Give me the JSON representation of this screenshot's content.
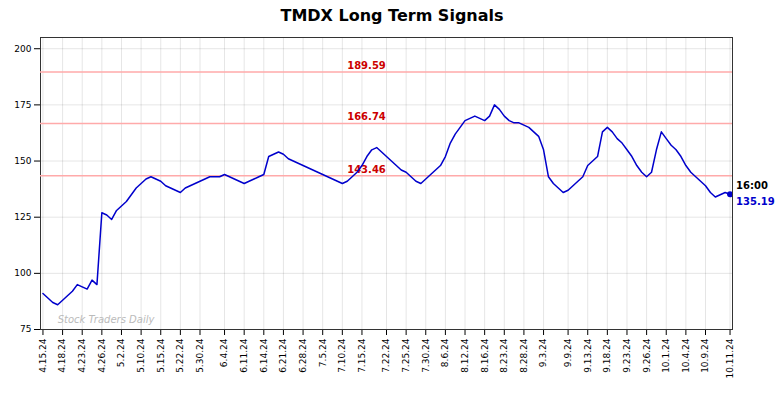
{
  "chart_data": {
    "type": "line",
    "title": "TMDX Long Term Signals",
    "categories": [
      "4.15.24",
      null,
      null,
      null,
      "4.18.24",
      null,
      null,
      null,
      "4.23.24",
      null,
      null,
      null,
      "4.26.24",
      null,
      null,
      null,
      "5.2.24",
      null,
      null,
      null,
      "5.10.24",
      null,
      null,
      null,
      "5.15.24",
      null,
      null,
      null,
      "5.22.24",
      null,
      null,
      null,
      "5.30.24",
      null,
      null,
      null,
      null,
      "6.4.24",
      null,
      null,
      null,
      "6.11.24",
      null,
      null,
      null,
      "6.14.24",
      null,
      null,
      null,
      "6.21.24",
      null,
      null,
      null,
      "6.28.24",
      null,
      null,
      null,
      "7.5.24",
      null,
      null,
      null,
      "7.10.24",
      null,
      null,
      null,
      "7.15.24",
      null,
      null,
      null,
      null,
      "7.22.24",
      null,
      null,
      null,
      "7.25.24",
      null,
      null,
      null,
      "7.30.24",
      null,
      null,
      null,
      "8.6.24",
      null,
      null,
      null,
      "8.12.24",
      null,
      null,
      null,
      "8.16.24",
      null,
      null,
      null,
      "8.23.24",
      null,
      null,
      null,
      "8.28.24",
      null,
      null,
      null,
      "9.3.24",
      null,
      null,
      null,
      null,
      "9.9.24",
      null,
      null,
      null,
      "9.13.24",
      null,
      null,
      null,
      "9.18.24",
      null,
      null,
      null,
      "9.23.24",
      null,
      null,
      null,
      "9.26.24",
      null,
      null,
      null,
      "10.1.24",
      null,
      null,
      null,
      "10.4.24",
      null,
      null,
      null,
      "10.9.24",
      null,
      null,
      null,
      null,
      "10.11.24"
    ],
    "series": [
      {
        "color": "#0000cc",
        "values": [
          91,
          89,
          87,
          86,
          88,
          90,
          92,
          95,
          94,
          93,
          97,
          95,
          127,
          126,
          124,
          128,
          130,
          132,
          135,
          138,
          140,
          142,
          143,
          142,
          141,
          139,
          138,
          137,
          136,
          138,
          139,
          140,
          141,
          142,
          143,
          143,
          143,
          144,
          143,
          142,
          141,
          140,
          141,
          142,
          143,
          144,
          152,
          153,
          154,
          153,
          151,
          150,
          149,
          148,
          147,
          146,
          145,
          144,
          143,
          142,
          141,
          140,
          141,
          143,
          145,
          148,
          152,
          155,
          156,
          154,
          152,
          150,
          148,
          146,
          145,
          143,
          141,
          140,
          142,
          144,
          146,
          148,
          152,
          158,
          162,
          165,
          168,
          169,
          170,
          169,
          168,
          170,
          175,
          173,
          170,
          168,
          167,
          167,
          166,
          165,
          163,
          161,
          155,
          143,
          140,
          138,
          136,
          137,
          139,
          141,
          143,
          148,
          150,
          152,
          163,
          165,
          163,
          160,
          158,
          155,
          152,
          148,
          145,
          143,
          145,
          155,
          163,
          160,
          157,
          155,
          152,
          148,
          145,
          143,
          141,
          139,
          136,
          134,
          135,
          136,
          135.19
        ]
      }
    ],
    "reference_lines": [
      {
        "value": 143.46,
        "label": "143.46",
        "color": "#ffaaaa"
      },
      {
        "value": 166.74,
        "label": "166.74",
        "color": "#ffaaaa"
      },
      {
        "value": 189.59,
        "label": "189.59",
        "color": "#ffaaaa"
      }
    ],
    "annotations": [
      {
        "text": "16:00",
        "x": 140,
        "y": 135.19,
        "color": "#000000"
      },
      {
        "text": "135.19",
        "x": 140,
        "y": 135.19,
        "color": "#0000cc"
      },
      {
        "text": "Stock Traders Daily",
        "x": 3,
        "y": 77,
        "color": "#bbbbbb"
      }
    ],
    "ylim": [
      75,
      205
    ],
    "yticks": [
      75,
      100,
      125,
      150,
      175,
      200
    ],
    "grid": true
  }
}
